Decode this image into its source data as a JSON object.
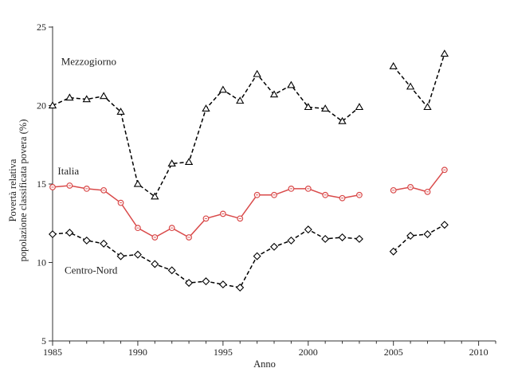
{
  "chart_data": {
    "type": "line",
    "xlabel": "Anno",
    "ylabel_lines": [
      "Povertà relativa",
      "popolazione classificata povera (%)"
    ],
    "xlim": [
      1985,
      2011
    ],
    "ylim": [
      5,
      25
    ],
    "x_ticks": [
      1985,
      1990,
      1995,
      2000,
      2005,
      2010
    ],
    "y_ticks": [
      5,
      10,
      15,
      20,
      25
    ],
    "grid": false,
    "series": [
      {
        "name": "Mezzogiorno",
        "marker": "triangle",
        "color": "#000000",
        "dashed": true,
        "segments": [
          {
            "x": [
              1985,
              1986,
              1987,
              1988,
              1989,
              1990,
              1991,
              1992,
              1993,
              1994,
              1995,
              1996,
              1997,
              1998,
              1999,
              2000,
              2001,
              2002,
              2003
            ],
            "y": [
              20.0,
              20.5,
              20.4,
              20.6,
              19.6,
              15.0,
              14.2,
              16.3,
              16.4,
              19.8,
              21.0,
              20.3,
              22.0,
              20.7,
              21.3,
              19.9,
              19.8,
              19.0,
              19.9
            ]
          },
          {
            "x": [
              2005,
              2006,
              2007,
              2008
            ],
            "y": [
              22.5,
              21.2,
              19.9,
              23.3
            ]
          }
        ]
      },
      {
        "name": "Italia",
        "marker": "circle",
        "color": "#d94a4a",
        "dashed": false,
        "segments": [
          {
            "x": [
              1985,
              1986,
              1987,
              1988,
              1989,
              1990,
              1991,
              1992,
              1993,
              1994,
              1995,
              1996,
              1997,
              1998,
              1999,
              2000,
              2001,
              2002,
              2003
            ],
            "y": [
              14.8,
              14.9,
              14.7,
              14.6,
              13.8,
              12.2,
              11.6,
              12.2,
              11.6,
              12.8,
              13.1,
              12.8,
              14.3,
              14.3,
              14.7,
              14.7,
              14.3,
              14.1,
              14.3
            ]
          },
          {
            "x": [
              2005,
              2006,
              2007,
              2008
            ],
            "y": [
              14.6,
              14.8,
              14.5,
              15.9
            ]
          }
        ]
      },
      {
        "name": "Centro-Nord",
        "marker": "diamond",
        "color": "#000000",
        "dashed": true,
        "segments": [
          {
            "x": [
              1985,
              1986,
              1987,
              1988,
              1989,
              1990,
              1991,
              1992,
              1993,
              1994,
              1995,
              1996,
              1997,
              1998,
              1999,
              2000,
              2001,
              2002,
              2003
            ],
            "y": [
              11.8,
              11.9,
              11.4,
              11.2,
              10.4,
              10.5,
              9.9,
              9.5,
              8.7,
              8.8,
              8.6,
              8.4,
              10.4,
              11.0,
              11.4,
              12.1,
              11.5,
              11.6,
              11.5
            ]
          },
          {
            "x": [
              2005,
              2006,
              2007,
              2008
            ],
            "y": [
              10.7,
              11.7,
              11.8,
              12.4
            ]
          }
        ]
      }
    ],
    "annotations": [
      {
        "text": "Mezzogiorno",
        "series": "Mezzogiorno",
        "x": 1985.5,
        "y": 22.6
      },
      {
        "text": "Italia",
        "series": "Italia",
        "x": 1985.3,
        "y": 15.6
      },
      {
        "text": "Centro-Nord",
        "series": "Centro-Nord",
        "x": 1985.7,
        "y": 9.3
      }
    ]
  }
}
